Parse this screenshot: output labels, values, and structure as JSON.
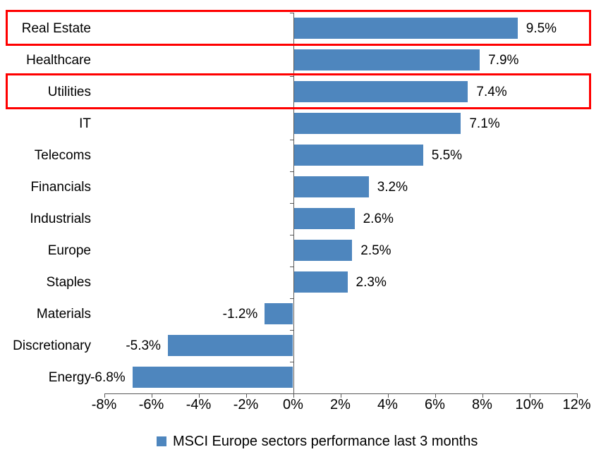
{
  "chart_data": {
    "type": "bar",
    "orientation": "horizontal",
    "title": "",
    "categories": [
      "Real Estate",
      "Healthcare",
      "Utilities",
      "IT",
      "Telecoms",
      "Financials",
      "Industrials",
      "Europe",
      "Staples",
      "Materials",
      "Discretionary",
      "Energy"
    ],
    "values": [
      9.5,
      7.9,
      7.4,
      7.1,
      5.5,
      3.2,
      2.6,
      2.5,
      2.3,
      -1.2,
      -5.3,
      -6.8
    ],
    "value_labels": [
      "9.5%",
      "7.9%",
      "7.4%",
      "7.1%",
      "5.5%",
      "3.2%",
      "2.6%",
      "2.5%",
      "2.3%",
      "-1.2%",
      "-5.3%",
      "-6.8%"
    ],
    "legend": "MSCI Europe sectors performance last 3 months",
    "legend_position": "bottom",
    "x_axis": {
      "ticks": [
        "-8%",
        "-6%",
        "-4%",
        "-2%",
        "0%",
        "2%",
        "4%",
        "6%",
        "8%",
        "10%",
        "12%"
      ],
      "min": -8,
      "max": 12,
      "step": 2
    },
    "grid": false,
    "highlighted_categories": [
      "Real Estate",
      "Utilities"
    ],
    "colors": {
      "bar": "#4E86BE",
      "highlight_box": "#FF0000",
      "axis": "#595959",
      "text": "#000000",
      "background": "#FFFFFF"
    }
  }
}
